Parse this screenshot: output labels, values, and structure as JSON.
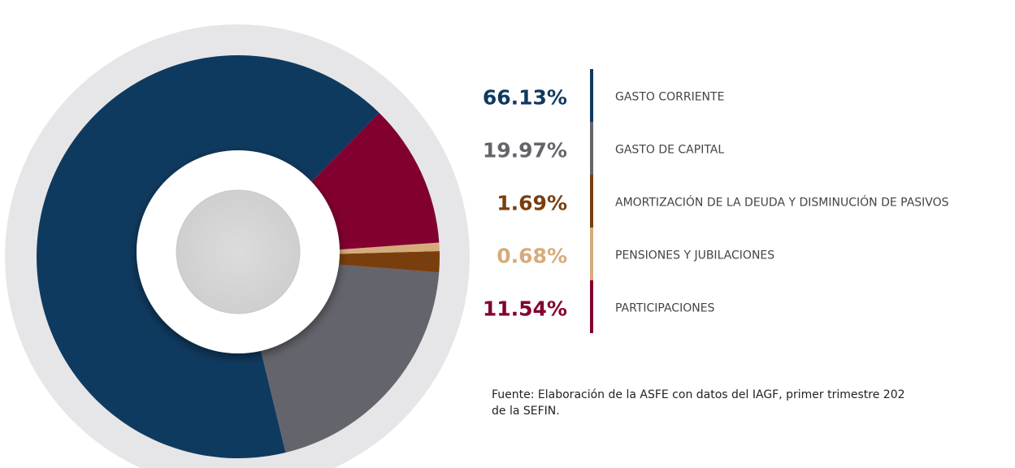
{
  "chart_data": {
    "type": "pie",
    "categories": [
      "GASTO CORRIENTE",
      "GASTO DE CAPITAL",
      "AMORTIZACIÓN DE LA DEUDA Y DISMINUCIÓN DE PASIVOS",
      "PENSIONES Y JUBILACIONES",
      "PARTICIPACIONES"
    ],
    "values": [
      66.13,
      19.97,
      1.69,
      0.68,
      11.54
    ],
    "value_labels": [
      "66.13%",
      "19.97%",
      "1.69%",
      "0.68%",
      "11.54%"
    ],
    "colors": [
      "#0f3a5f",
      "#64646c",
      "#7a3e0e",
      "#d6ab7c",
      "#820030"
    ],
    "donut": true,
    "note": [
      "Fuente: Elaboración de la ASFE con datos del IAGF, primer trimestre 202",
      "de la SEFIN."
    ]
  }
}
